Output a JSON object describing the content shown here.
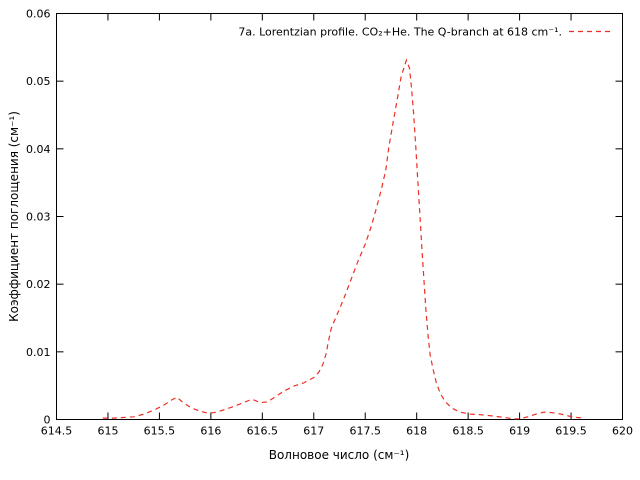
{
  "chart_data": {
    "type": "line",
    "title": "",
    "xlabel": "Волновое число (см⁻¹)",
    "ylabel": "Коэффициент поглощения (см⁻¹)",
    "xlim": [
      614.5,
      620
    ],
    "ylim": [
      0,
      0.06
    ],
    "grid": false,
    "legend_position": "top-right-inside",
    "x_ticks": [
      "614.5",
      "615",
      "615.5",
      "616",
      "616.5",
      "617",
      "617.5",
      "618",
      "618.5",
      "619",
      "619.5",
      "620"
    ],
    "x_tick_values": [
      614.5,
      615,
      615.5,
      616,
      616.5,
      617,
      617.5,
      618,
      618.5,
      619,
      619.5,
      620
    ],
    "y_ticks": [
      "0",
      "0.01",
      "0.02",
      "0.03",
      "0.04",
      "0.05",
      "0.06"
    ],
    "y_tick_values": [
      0,
      0.01,
      0.02,
      0.03,
      0.04,
      0.05,
      0.06
    ],
    "series": [
      {
        "name": "7a. Lorentzian profile. CO₂+He. The Q-branch at 618 cm⁻¹.",
        "color": "#ee2e24",
        "style": "dashed",
        "peak": {
          "x": 617.9,
          "y": 0.0531
        },
        "points": [
          [
            614.95,
            0.0002
          ],
          [
            615.05,
            0.0002
          ],
          [
            615.15,
            0.0003
          ],
          [
            615.25,
            0.0004
          ],
          [
            615.35,
            0.0008
          ],
          [
            615.45,
            0.0014
          ],
          [
            615.55,
            0.0022
          ],
          [
            615.62,
            0.0029
          ],
          [
            615.67,
            0.0033
          ],
          [
            615.73,
            0.0025
          ],
          [
            615.8,
            0.0018
          ],
          [
            615.88,
            0.0013
          ],
          [
            615.95,
            0.001
          ],
          [
            616.03,
            0.001
          ],
          [
            616.1,
            0.0013
          ],
          [
            616.2,
            0.0018
          ],
          [
            616.3,
            0.0024
          ],
          [
            616.4,
            0.003
          ],
          [
            616.48,
            0.0025
          ],
          [
            616.55,
            0.0026
          ],
          [
            616.62,
            0.0033
          ],
          [
            616.7,
            0.0041
          ],
          [
            616.8,
            0.0049
          ],
          [
            616.9,
            0.0054
          ],
          [
            617.0,
            0.0062
          ],
          [
            617.05,
            0.007
          ],
          [
            617.09,
            0.0082
          ],
          [
            617.12,
            0.0097
          ],
          [
            617.14,
            0.0114
          ],
          [
            617.17,
            0.0135
          ],
          [
            617.24,
            0.016
          ],
          [
            617.29,
            0.0178
          ],
          [
            617.35,
            0.0202
          ],
          [
            617.43,
            0.0234
          ],
          [
            617.5,
            0.0259
          ],
          [
            617.56,
            0.0286
          ],
          [
            617.61,
            0.0313
          ],
          [
            617.66,
            0.0342
          ],
          [
            617.7,
            0.0369
          ],
          [
            617.73,
            0.0403
          ],
          [
            617.77,
            0.0438
          ],
          [
            617.81,
            0.0472
          ],
          [
            617.85,
            0.0507
          ],
          [
            617.9,
            0.0531
          ],
          [
            617.93,
            0.0519
          ],
          [
            617.95,
            0.049
          ],
          [
            617.97,
            0.0452
          ],
          [
            617.99,
            0.0405
          ],
          [
            618.01,
            0.0355
          ],
          [
            618.03,
            0.0305
          ],
          [
            618.05,
            0.0255
          ],
          [
            618.07,
            0.0207
          ],
          [
            618.09,
            0.0162
          ],
          [
            618.11,
            0.0125
          ],
          [
            618.13,
            0.0096
          ],
          [
            618.16,
            0.0074
          ],
          [
            618.19,
            0.0055
          ],
          [
            618.23,
            0.0038
          ],
          [
            618.28,
            0.0026
          ],
          [
            618.34,
            0.0017
          ],
          [
            618.42,
            0.0011
          ],
          [
            618.52,
            0.0008
          ],
          [
            618.63,
            0.0007
          ],
          [
            618.75,
            0.0005
          ],
          [
            618.85,
            0.0003
          ],
          [
            618.95,
            0.0001
          ],
          [
            619.0,
            0.0001
          ],
          [
            619.08,
            0.0004
          ],
          [
            619.16,
            0.0008
          ],
          [
            619.24,
            0.0011
          ],
          [
            619.32,
            0.001
          ],
          [
            619.4,
            0.0008
          ],
          [
            619.48,
            0.0005
          ],
          [
            619.56,
            0.0003
          ],
          [
            619.63,
            0.0002
          ]
        ]
      }
    ]
  },
  "colors": {
    "background": "#ffffff",
    "axis": "#000000",
    "text": "#000000",
    "series_red": "#ee2e24"
  }
}
